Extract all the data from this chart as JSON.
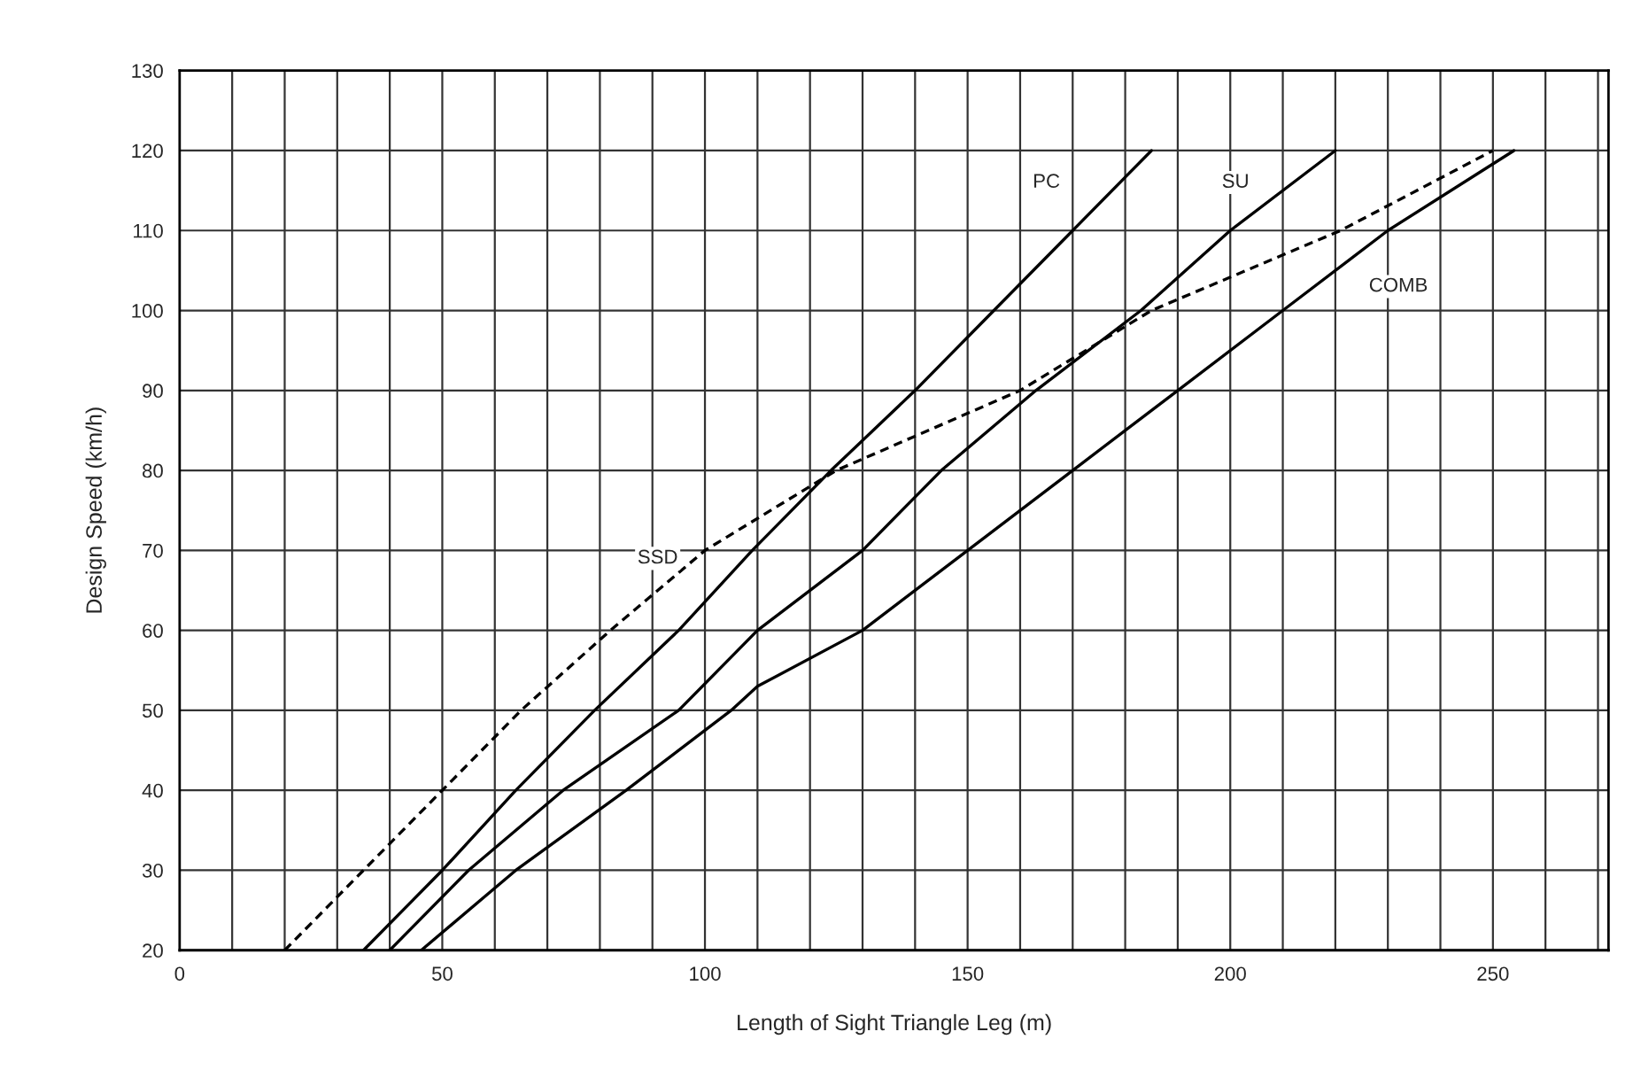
{
  "chart_data": {
    "type": "line",
    "xlabel": "Length of Sight Triangle Leg (m)",
    "ylabel": "Design Speed (km/h)",
    "xlim": [
      0,
      272
    ],
    "ylim": [
      20,
      130
    ],
    "xticks": [
      0,
      {
        "value": 10,
        "label": null
      },
      {
        "value": 20,
        "label": null
      },
      {
        "value": 30,
        "label": null
      },
      {
        "value": 40,
        "label": null
      },
      50,
      {
        "value": 60,
        "label": null
      },
      {
        "value": 70,
        "label": null
      },
      {
        "value": 80,
        "label": null
      },
      {
        "value": 90,
        "label": null
      },
      100,
      {
        "value": 110,
        "label": null
      },
      {
        "value": 120,
        "label": null
      },
      {
        "value": 130,
        "label": null
      },
      {
        "value": 140,
        "label": null
      },
      150,
      {
        "value": 160,
        "label": null
      },
      {
        "value": 170,
        "label": null
      },
      {
        "value": 180,
        "label": null
      },
      {
        "value": 190,
        "label": null
      },
      200,
      {
        "value": 210,
        "label": null
      },
      {
        "value": 220,
        "label": null
      },
      {
        "value": 230,
        "label": null
      },
      {
        "value": 240,
        "label": null
      },
      250,
      {
        "value": 260,
        "label": null
      },
      {
        "value": 270,
        "label": null
      }
    ],
    "yticks": [
      20,
      30,
      40,
      50,
      60,
      70,
      80,
      90,
      100,
      110,
      120,
      130
    ],
    "grid": true,
    "marker": "none",
    "series": [
      {
        "color": "#000000",
        "line_style": "solid",
        "x": [
          35,
          50,
          64,
          79,
          95,
          109,
          124,
          140,
          155,
          170,
          185
        ],
        "values": [
          20,
          30,
          40,
          50,
          60,
          70,
          80,
          90,
          100,
          110,
          120
        ]
      },
      {
        "color": "#000000",
        "line_style": "solid",
        "x": [
          40,
          55,
          73,
          95,
          110,
          130,
          145,
          163,
          183,
          200,
          220
        ],
        "values": [
          20,
          30,
          40,
          50,
          60,
          70,
          80,
          90,
          100,
          110,
          120
        ]
      },
      {
        "color": "#000000",
        "line_style": "solid",
        "x": [
          46,
          64,
          85,
          105,
          110,
          130,
          150,
          170,
          190,
          210,
          230,
          254
        ],
        "values": [
          20,
          30,
          40,
          50,
          53,
          60,
          70,
          80,
          90,
          100,
          110,
          120
        ]
      },
      {
        "color": "#000000",
        "line_style": "dashed",
        "x": [
          20,
          35,
          50,
          65,
          82,
          100,
          125,
          160,
          185,
          221,
          250
        ],
        "values": [
          20,
          30,
          40,
          50,
          60,
          70,
          80,
          90,
          100,
          110,
          120
        ]
      }
    ],
    "annotations": [
      {
        "text": "PC",
        "x": 165,
        "y": 116
      },
      {
        "text": "SU",
        "x": 201,
        "y": 116
      },
      {
        "text": "COMB",
        "x": 232,
        "y": 103
      },
      {
        "text": "SSD",
        "x": 91,
        "y": 69
      }
    ]
  }
}
